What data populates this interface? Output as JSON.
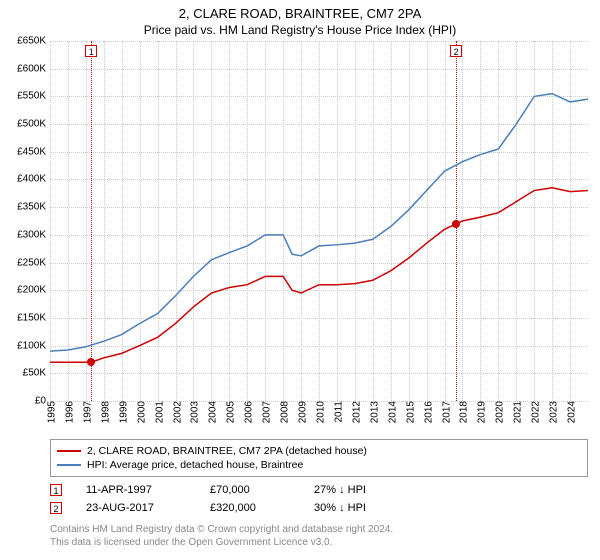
{
  "title": "2, CLARE ROAD, BRAINTREE, CM7 2PA",
  "subtitle": "Price paid vs. HM Land Registry's House Price Index (HPI)",
  "chart": {
    "type": "line",
    "background_color": "#ffffff",
    "grid_color": "#cccccc",
    "ylim": [
      0,
      650000
    ],
    "ytick_step": 50000,
    "y_prefix": "£",
    "y_suffix_k": "K",
    "ylabel_fontsize": 10,
    "xlim": [
      1995,
      2025
    ],
    "xticks": [
      1995,
      1996,
      1997,
      1998,
      1999,
      2000,
      2001,
      2002,
      2003,
      2004,
      2005,
      2006,
      2007,
      2008,
      2009,
      2010,
      2011,
      2012,
      2013,
      2014,
      2015,
      2016,
      2017,
      2018,
      2019,
      2020,
      2021,
      2022,
      2023,
      2024
    ],
    "xlabel_fontsize": 10,
    "series": [
      {
        "key": "price_paid",
        "label": "2, CLARE ROAD, BRAINTREE, CM7 2PA (detached house)",
        "color": "#cc0000",
        "line_width": 1.5,
        "points": [
          [
            1995.0,
            70000
          ],
          [
            1996.0,
            70000
          ],
          [
            1997.3,
            70000
          ],
          [
            1998.0,
            78000
          ],
          [
            1999.0,
            86000
          ],
          [
            2000.0,
            100000
          ],
          [
            2001.0,
            115000
          ],
          [
            2002.0,
            140000
          ],
          [
            2003.0,
            170000
          ],
          [
            2004.0,
            195000
          ],
          [
            2005.0,
            205000
          ],
          [
            2006.0,
            210000
          ],
          [
            2007.0,
            225000
          ],
          [
            2008.0,
            225000
          ],
          [
            2008.5,
            200000
          ],
          [
            2009.0,
            195000
          ],
          [
            2010.0,
            210000
          ],
          [
            2011.0,
            210000
          ],
          [
            2012.0,
            212000
          ],
          [
            2013.0,
            218000
          ],
          [
            2014.0,
            235000
          ],
          [
            2015.0,
            258000
          ],
          [
            2016.0,
            285000
          ],
          [
            2017.0,
            310000
          ],
          [
            2017.65,
            320000
          ],
          [
            2018.0,
            325000
          ],
          [
            2019.0,
            332000
          ],
          [
            2020.0,
            340000
          ],
          [
            2021.0,
            360000
          ],
          [
            2022.0,
            380000
          ],
          [
            2023.0,
            385000
          ],
          [
            2024.0,
            378000
          ],
          [
            2025.0,
            380000
          ]
        ]
      },
      {
        "key": "hpi",
        "label": "HPI: Average price, detached house, Braintree",
        "color": "#4a7ebb",
        "line_width": 1.5,
        "points": [
          [
            1995.0,
            90000
          ],
          [
            1996.0,
            92000
          ],
          [
            1997.0,
            98000
          ],
          [
            1998.0,
            108000
          ],
          [
            1999.0,
            120000
          ],
          [
            2000.0,
            140000
          ],
          [
            2001.0,
            158000
          ],
          [
            2002.0,
            190000
          ],
          [
            2003.0,
            225000
          ],
          [
            2004.0,
            255000
          ],
          [
            2005.0,
            268000
          ],
          [
            2006.0,
            280000
          ],
          [
            2007.0,
            300000
          ],
          [
            2008.0,
            300000
          ],
          [
            2008.5,
            265000
          ],
          [
            2009.0,
            262000
          ],
          [
            2010.0,
            280000
          ],
          [
            2011.0,
            282000
          ],
          [
            2012.0,
            285000
          ],
          [
            2013.0,
            292000
          ],
          [
            2014.0,
            315000
          ],
          [
            2015.0,
            345000
          ],
          [
            2016.0,
            380000
          ],
          [
            2017.0,
            415000
          ],
          [
            2018.0,
            432000
          ],
          [
            2019.0,
            445000
          ],
          [
            2020.0,
            455000
          ],
          [
            2021.0,
            500000
          ],
          [
            2022.0,
            550000
          ],
          [
            2023.0,
            555000
          ],
          [
            2024.0,
            540000
          ],
          [
            2025.0,
            545000
          ]
        ]
      }
    ],
    "sale_markers": [
      {
        "n": "1",
        "x": 1997.3,
        "y": 70000,
        "color": "#cc0000"
      },
      {
        "n": "2",
        "x": 2017.65,
        "y": 320000,
        "color": "#cc0000"
      }
    ]
  },
  "legend": {
    "border_color": "#999999",
    "fontsize": 10.5
  },
  "sales": [
    {
      "n": "1",
      "date": "11-APR-1997",
      "price": "£70,000",
      "delta": "27% ↓ HPI",
      "color": "#cc0000"
    },
    {
      "n": "2",
      "date": "23-AUG-2017",
      "price": "£320,000",
      "delta": "30% ↓ HPI",
      "color": "#cc0000"
    }
  ],
  "footnote_line1": "Contains HM Land Registry data © Crown copyright and database right 2024.",
  "footnote_line2": "This data is licensed under the Open Government Licence v3.0."
}
